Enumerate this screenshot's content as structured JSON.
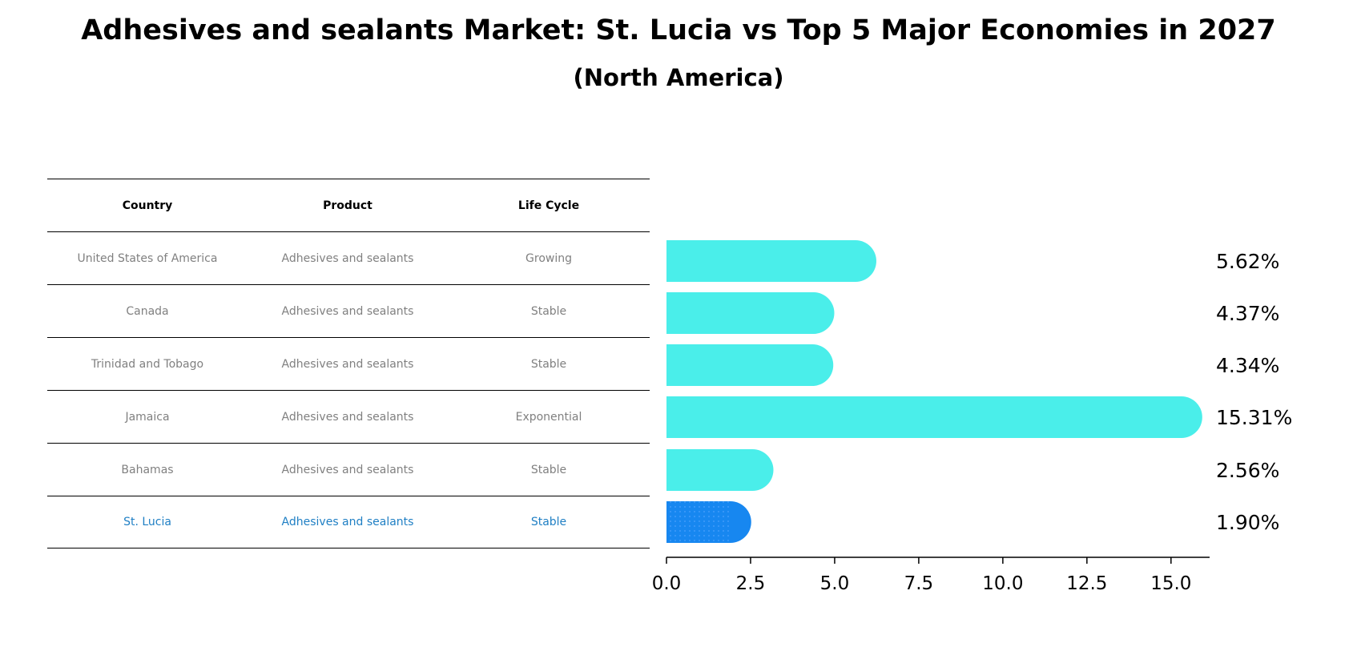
{
  "title": "Adhesives and sealants Market: St. Lucia vs Top 5 Major Economies in 2027",
  "subtitle": "(North America)",
  "table": {
    "headers": [
      "Country",
      "Product",
      "Life Cycle"
    ],
    "rows": [
      {
        "country": "United States of America",
        "product": "Adhesives and sealants",
        "life_cycle": "Growing"
      },
      {
        "country": "Canada",
        "product": "Adhesives and sealants",
        "life_cycle": "Stable"
      },
      {
        "country": "Trinidad and Tobago",
        "product": "Adhesives and sealants",
        "life_cycle": "Stable"
      },
      {
        "country": "Jamaica",
        "product": "Adhesives and sealants",
        "life_cycle": "Exponential"
      },
      {
        "country": "Bahamas",
        "product": "Adhesives and sealants",
        "life_cycle": "Stable"
      },
      {
        "country": "St. Lucia",
        "product": "Adhesives and sealants",
        "life_cycle": "Stable"
      }
    ]
  },
  "chart_data": {
    "type": "bar",
    "orientation": "horizontal",
    "categories": [
      "United States of America",
      "Canada",
      "Trinidad and Tobago",
      "Jamaica",
      "Bahamas",
      "St. Lucia"
    ],
    "values": [
      5.62,
      4.37,
      4.34,
      15.31,
      2.56,
      1.9
    ],
    "value_labels": [
      "5.62%",
      "4.37%",
      "4.34%",
      "15.31%",
      "2.56%",
      "1.90%"
    ],
    "xlim": [
      0,
      16.1
    ],
    "xticks": [
      0.0,
      2.5,
      5.0,
      7.5,
      10.0,
      12.5,
      15.0
    ],
    "xtick_labels": [
      "0.0",
      "2.5",
      "5.0",
      "7.5",
      "10.0",
      "12.5",
      "15.0"
    ],
    "highlight_index": 5,
    "colors": {
      "default": "#4aeeea",
      "highlight": "#1787f0"
    }
  }
}
